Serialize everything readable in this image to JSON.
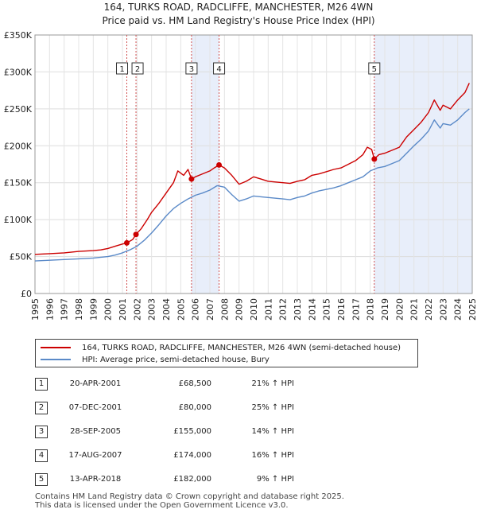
{
  "header": {
    "title": "164, TURKS ROAD, RADCLIFFE, MANCHESTER, M26 4WN",
    "subtitle": "Price paid vs. HM Land Registry's House Price Index (HPI)"
  },
  "legend": {
    "property": "164, TURKS ROAD, RADCLIFFE, MANCHESTER, M26 4WN (semi-detached house)",
    "hpi": "HPI: Average price, semi-detached house, Bury"
  },
  "colors": {
    "property": "#cc0000",
    "hpi": "#5b8ac8",
    "band": "#e8eefa",
    "vline": "#d05050"
  },
  "chart_data": {
    "type": "line",
    "title": "164, TURKS ROAD, RADCLIFFE, MANCHESTER, M26 4WN",
    "subtitle": "Price paid vs. HM Land Registry's House Price Index (HPI)",
    "xlim": [
      1995,
      2025
    ],
    "ylim": [
      0,
      350000
    ],
    "y_ticks": [
      0,
      50000,
      100000,
      150000,
      200000,
      250000,
      300000,
      350000
    ],
    "y_tick_labels": [
      "£0",
      "£50K",
      "£100K",
      "£150K",
      "£200K",
      "£250K",
      "£300K",
      "£350K"
    ],
    "x_ticks": [
      1995,
      1996,
      1997,
      1998,
      1999,
      2000,
      2001,
      2002,
      2003,
      2004,
      2005,
      2006,
      2007,
      2008,
      2009,
      2010,
      2011,
      2012,
      2013,
      2014,
      2015,
      2016,
      2017,
      2018,
      2019,
      2020,
      2021,
      2022,
      2023,
      2024,
      2025
    ],
    "grid": true,
    "bands": [
      [
        2005.74,
        2007.63
      ],
      [
        2018.28,
        2025.0
      ]
    ],
    "series": [
      {
        "name": "164, TURKS ROAD, RADCLIFFE, MANCHESTER, M26 4WN (semi-detached house)",
        "x": [
          1995,
          1996,
          1997,
          1998,
          1999,
          1999.5,
          2000,
          2000.5,
          2001,
          2001.3,
          2001.7,
          2001.93,
          2002.3,
          2002.7,
          2003,
          2003.5,
          2004,
          2004.5,
          2004.8,
          2005.2,
          2005.5,
          2005.74,
          2006,
          2006.5,
          2007,
          2007.3,
          2007.63,
          2008,
          2008.5,
          2009,
          2009.5,
          2010,
          2010.5,
          2011,
          2011.5,
          2012,
          2012.5,
          2013,
          2013.5,
          2014,
          2014.5,
          2015,
          2015.5,
          2016,
          2016.5,
          2017,
          2017.5,
          2017.8,
          2018.1,
          2018.28,
          2018.6,
          2019,
          2019.5,
          2020,
          2020.5,
          2021,
          2021.5,
          2022,
          2022.4,
          2022.8,
          2023,
          2023.5,
          2024,
          2024.5,
          2024.8
        ],
        "values": [
          53000,
          54000,
          55000,
          57000,
          58000,
          59000,
          61000,
          64000,
          67000,
          68500,
          73000,
          80000,
          88000,
          100000,
          110000,
          122000,
          136000,
          150000,
          166000,
          160000,
          168000,
          155000,
          158000,
          162000,
          166000,
          170000,
          174000,
          170000,
          160000,
          148000,
          152000,
          158000,
          155000,
          152000,
          151000,
          150000,
          149000,
          152000,
          154000,
          160000,
          162000,
          165000,
          168000,
          170000,
          175000,
          180000,
          188000,
          198000,
          195000,
          182000,
          188000,
          190000,
          194000,
          198000,
          212000,
          222000,
          232000,
          245000,
          262000,
          248000,
          255000,
          250000,
          262000,
          272000,
          285000
        ]
      },
      {
        "name": "HPI: Average price, semi-detached house, Bury",
        "x": [
          1995,
          1996,
          1997,
          1998,
          1999,
          2000,
          2000.5,
          2001,
          2001.5,
          2002,
          2002.5,
          2003,
          2003.5,
          2004,
          2004.5,
          2005,
          2005.5,
          2006,
          2006.5,
          2007,
          2007.5,
          2008,
          2008.5,
          2009,
          2009.5,
          2010,
          2010.5,
          2011,
          2011.5,
          2012,
          2012.5,
          2013,
          2013.5,
          2014,
          2014.5,
          2015,
          2015.5,
          2016,
          2016.5,
          2017,
          2017.5,
          2018,
          2018.5,
          2019,
          2019.5,
          2020,
          2020.5,
          2021,
          2021.5,
          2022,
          2022.4,
          2022.8,
          2023,
          2023.5,
          2024,
          2024.5,
          2024.8
        ],
        "values": [
          44000,
          45000,
          46000,
          47000,
          48000,
          50000,
          52000,
          55000,
          59000,
          64000,
          72000,
          82000,
          93000,
          105000,
          115000,
          122000,
          128000,
          133000,
          136000,
          140000,
          146000,
          144000,
          134000,
          125000,
          128000,
          132000,
          131000,
          130000,
          129000,
          128000,
          127000,
          130000,
          132000,
          136000,
          139000,
          141000,
          143000,
          146000,
          150000,
          154000,
          158000,
          166000,
          170000,
          172000,
          176000,
          180000,
          190000,
          200000,
          209000,
          220000,
          235000,
          224000,
          230000,
          228000,
          235000,
          245000,
          250000
        ]
      }
    ],
    "sales": [
      {
        "label": "1",
        "x": 2001.3,
        "value": 68500
      },
      {
        "label": "2",
        "x": 2001.93,
        "value": 80000
      },
      {
        "label": "3",
        "x": 2005.74,
        "value": 155000
      },
      {
        "label": "4",
        "x": 2007.63,
        "value": 174000
      },
      {
        "label": "5",
        "x": 2018.28,
        "value": 182000
      }
    ]
  },
  "transactions": [
    {
      "num": "1",
      "date": "20-APR-2001",
      "price": "£68,500",
      "hpi": "21% ↑ HPI"
    },
    {
      "num": "2",
      "date": "07-DEC-2001",
      "price": "£80,000",
      "hpi": "25% ↑ HPI"
    },
    {
      "num": "3",
      "date": "28-SEP-2005",
      "price": "£155,000",
      "hpi": "14% ↑ HPI"
    },
    {
      "num": "4",
      "date": "17-AUG-2007",
      "price": "£174,000",
      "hpi": "16% ↑ HPI"
    },
    {
      "num": "5",
      "date": "13-APR-2018",
      "price": "£182,000",
      "hpi": "9% ↑ HPI"
    }
  ],
  "footer": {
    "line1": "Contains HM Land Registry data © Crown copyright and database right 2025.",
    "line2": "This data is licensed under the Open Government Licence v3.0."
  }
}
